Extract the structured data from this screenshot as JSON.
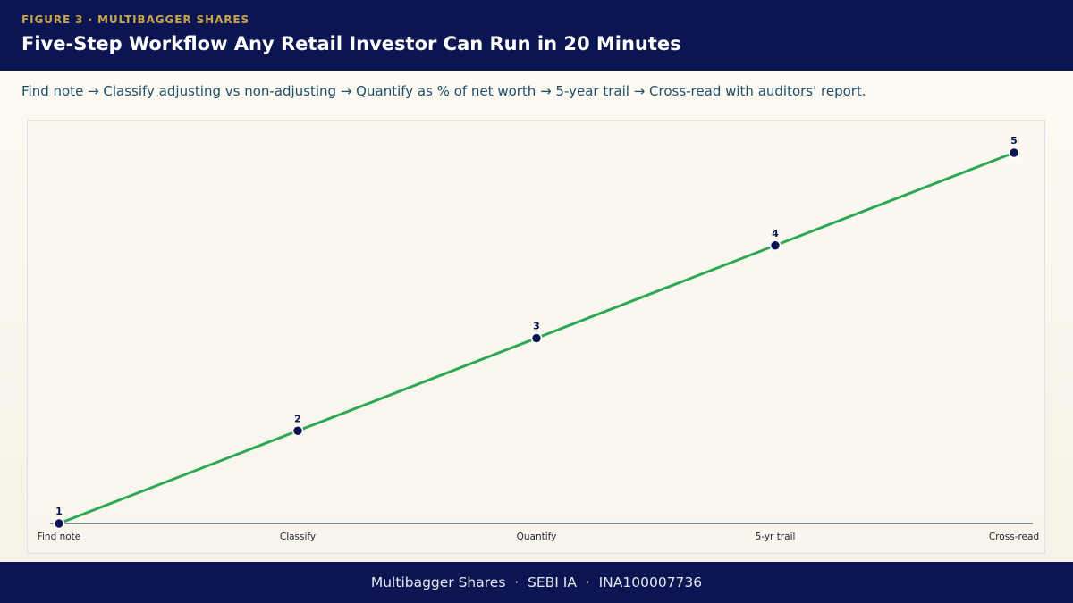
{
  "header": {
    "kicker": "FIGURE 3  ·  MULTIBAGGER SHARES",
    "title": "Five-Step Workflow Any Retail Investor Can Run in 20 Minutes"
  },
  "subtitle": "Find note → Classify adjusting vs non-adjusting → Quantify as % of net worth → 5-year trail → Cross-read with auditors' report.",
  "footer": {
    "text": "Multibagger Shares  ·  SEBI IA  ·  INA100007736"
  },
  "colors": {
    "line": "#2ea855",
    "marker": "#0b1552",
    "axis": "#5b6476",
    "header": "#0b1552",
    "kicker": "#c9a54a"
  },
  "chart_data": {
    "type": "line",
    "title": "",
    "xlabel": "",
    "ylabel": "",
    "categories": [
      "Find note",
      "Classify",
      "Quantify",
      "5-yr trail",
      "Cross-read"
    ],
    "series": [
      {
        "values": [
          1,
          2,
          3,
          4,
          5
        ],
        "point_labels": [
          "1",
          "2",
          "3",
          "4",
          "5"
        ]
      }
    ],
    "ylim": [
      1,
      5
    ],
    "grid": false,
    "legend": "none"
  }
}
